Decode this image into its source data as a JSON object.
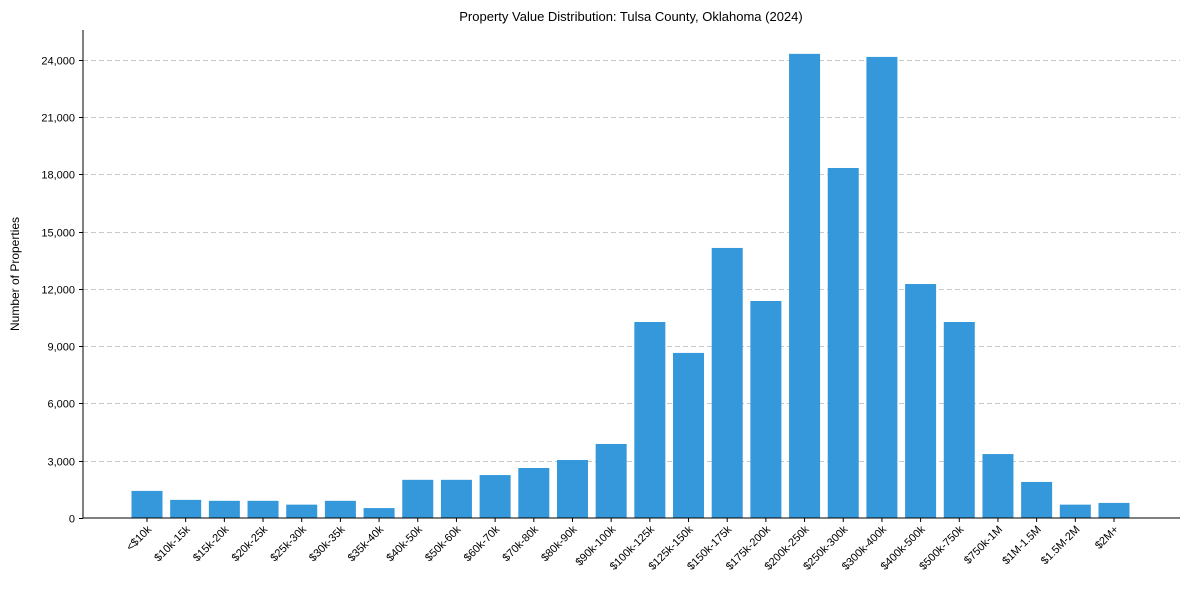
{
  "chart_data": {
    "type": "bar",
    "title": "Property Value Distribution: Tulsa County, Oklahoma (2024)",
    "xlabel": "",
    "ylabel": "Number of Properties",
    "ylim": [
      0,
      25570
    ],
    "yticks": [
      0,
      3000,
      6000,
      9000,
      12000,
      15000,
      18000,
      21000,
      24000
    ],
    "ytick_labels": [
      "0",
      "3,000",
      "6,000",
      "9,000",
      "12,000",
      "15,000",
      "18,000",
      "21,000",
      "24,000"
    ],
    "grid": "y dashed",
    "bar_color": "#3498db",
    "categories": [
      "<$10k",
      "$10k-15k",
      "$15k-20k",
      "$20k-25k",
      "$25k-30k",
      "$30k-35k",
      "$35k-40k",
      "$40k-50k",
      "$50k-60k",
      "$60k-70k",
      "$70k-80k",
      "$80k-90k",
      "$90k-100k",
      "$100k-125k",
      "$125k-150k",
      "$150k-175k",
      "$175k-200k",
      "$200k-250k",
      "$250k-300k",
      "$300k-400k",
      "$400k-500k",
      "$500k-750k",
      "$750k-1M",
      "$1M-1.5M",
      "$1.5M-2M",
      "$2M+"
    ],
    "values": [
      1420,
      950,
      900,
      900,
      700,
      900,
      520,
      2000,
      2000,
      2250,
      2620,
      3040,
      3880,
      10270,
      8650,
      14150,
      11370,
      24320,
      18340,
      24160,
      12260,
      10270,
      3350,
      1890,
      700,
      790
    ]
  }
}
